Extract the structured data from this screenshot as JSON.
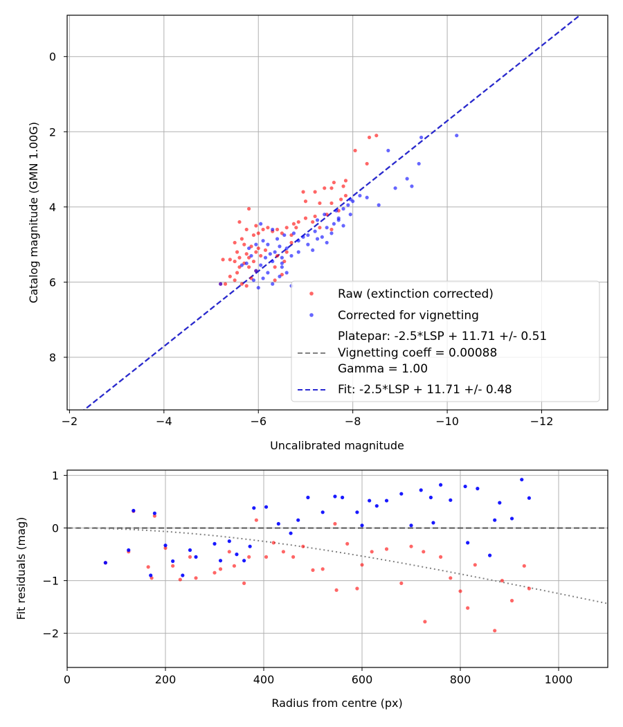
{
  "chart_data": [
    {
      "type": "scatter",
      "xlabel": "Uncalibrated magnitude",
      "ylabel": "Catalog magnitude (GMN 1.00G)",
      "xlim": [
        -1.95,
        -13.4
      ],
      "ylim": [
        9.4,
        -1.1
      ],
      "x_ticks": [
        -2,
        -4,
        -6,
        -8,
        -10,
        -12
      ],
      "x_tick_labels": [
        "−2",
        "−4",
        "−6",
        "−8",
        "−10",
        "−12"
      ],
      "y_ticks": [
        0,
        2,
        4,
        6,
        8
      ],
      "y_tick_labels": [
        "0",
        "2",
        "4",
        "6",
        "8"
      ],
      "grid": true,
      "legend_position": "lower-right",
      "legend": {
        "raw": "Raw (extinction corrected)",
        "corrected": "Corrected for vignetting",
        "platepar_line1": "Platepar: -2.5*LSP + 11.71 +/- 0.51",
        "platepar_line2": "Vignetting coeff = 0.00088",
        "platepar_line3": "Gamma = 1.00",
        "fit": "Fit: -2.5*LSP + 11.71 +/- 0.48"
      },
      "colors": {
        "raw": "#ff0000",
        "corrected": "#0000ff",
        "platepar_line": "#808080",
        "fit_line": "#2828d2"
      },
      "lines": [
        {
          "name": "Platepar: -2.5*LSP + 11.71 +/- 0.51",
          "slope": -2.5,
          "intercept": 11.71,
          "style": "dashed",
          "color": "#808080"
        },
        {
          "name": "Fit: -2.5*LSP + 11.71 +/- 0.48",
          "slope": -2.5,
          "intercept": 11.71,
          "style": "dashed",
          "color": "#2828d2"
        }
      ],
      "series": [
        {
          "name": "Raw (extinction corrected)",
          "points": [
            [
              -8.5,
              2.1
            ],
            [
              -8.35,
              2.15
            ],
            [
              -8.05,
              2.5
            ],
            [
              -8.3,
              2.85
            ],
            [
              -7.85,
              3.3
            ],
            [
              -7.8,
              3.45
            ],
            [
              -7.6,
              3.35
            ],
            [
              -7.55,
              3.5
            ],
            [
              -7.4,
              3.5
            ],
            [
              -7.2,
              3.6
            ],
            [
              -6.95,
              3.6
            ],
            [
              -7.0,
              3.85
            ],
            [
              -7.3,
              3.9
            ],
            [
              -7.55,
              3.9
            ],
            [
              -7.75,
              3.8
            ],
            [
              -7.85,
              3.7
            ],
            [
              -7.7,
              4.1
            ],
            [
              -7.45,
              4.2
            ],
            [
              -7.2,
              4.25
            ],
            [
              -7.0,
              4.3
            ],
            [
              -7.15,
              4.4
            ],
            [
              -7.3,
              4.55
            ],
            [
              -7.55,
              4.6
            ],
            [
              -6.85,
              4.4
            ],
            [
              -6.75,
              4.45
            ],
            [
              -6.6,
              4.55
            ],
            [
              -6.4,
              4.6
            ],
            [
              -6.3,
              4.65
            ],
            [
              -6.5,
              4.7
            ],
            [
              -6.7,
              4.75
            ],
            [
              -6.2,
              4.55
            ],
            [
              -6.1,
              4.6
            ],
            [
              -6.0,
              4.7
            ],
            [
              -5.95,
              4.5
            ],
            [
              -5.8,
              4.05
            ],
            [
              -5.6,
              4.4
            ],
            [
              -5.75,
              4.6
            ],
            [
              -5.9,
              4.75
            ],
            [
              -5.65,
              4.85
            ],
            [
              -5.5,
              4.95
            ],
            [
              -5.7,
              5.0
            ],
            [
              -5.85,
              5.05
            ],
            [
              -6.0,
              5.1
            ],
            [
              -6.15,
              5.15
            ],
            [
              -5.95,
              5.2
            ],
            [
              -5.75,
              5.25
            ],
            [
              -5.55,
              5.2
            ],
            [
              -5.6,
              5.35
            ],
            [
              -5.8,
              5.35
            ],
            [
              -6.05,
              5.3
            ],
            [
              -5.9,
              5.45
            ],
            [
              -5.7,
              5.5
            ],
            [
              -5.5,
              5.45
            ],
            [
              -5.4,
              5.4
            ],
            [
              -5.6,
              5.6
            ],
            [
              -5.8,
              5.6
            ],
            [
              -5.95,
              5.7
            ],
            [
              -5.55,
              5.75
            ],
            [
              -5.4,
              5.85
            ],
            [
              -5.5,
              5.95
            ],
            [
              -5.65,
              6.05
            ],
            [
              -5.75,
              6.1
            ],
            [
              -5.85,
              5.9
            ],
            [
              -6.4,
              5.3
            ],
            [
              -6.55,
              5.45
            ],
            [
              -6.35,
              5.6
            ],
            [
              -6.5,
              5.8
            ],
            [
              -6.35,
              5.95
            ],
            [
              -6.6,
              5.2
            ],
            [
              -6.7,
              4.95
            ],
            [
              -6.8,
              4.55
            ],
            [
              -5.25,
              5.4
            ],
            [
              -5.3,
              6.05
            ],
            [
              -5.2,
              6.05
            ]
          ]
        },
        {
          "name": "Corrected for vignetting",
          "points": [
            [
              -10.2,
              2.1
            ],
            [
              -9.45,
              2.15
            ],
            [
              -8.75,
              2.5
            ],
            [
              -9.4,
              2.85
            ],
            [
              -9.15,
              3.25
            ],
            [
              -8.9,
              3.5
            ],
            [
              -9.25,
              3.45
            ],
            [
              -8.55,
              3.95
            ],
            [
              -8.3,
              3.75
            ],
            [
              -8.15,
              3.7
            ],
            [
              -8.0,
              3.85
            ],
            [
              -7.9,
              3.95
            ],
            [
              -7.8,
              4.05
            ],
            [
              -7.95,
              4.2
            ],
            [
              -7.7,
              4.3
            ],
            [
              -7.6,
              4.45
            ],
            [
              -7.8,
              4.5
            ],
            [
              -7.45,
              4.55
            ],
            [
              -7.55,
              4.7
            ],
            [
              -7.35,
              4.8
            ],
            [
              -7.25,
              4.85
            ],
            [
              -7.2,
              4.65
            ],
            [
              -7.05,
              4.75
            ],
            [
              -6.95,
              4.8
            ],
            [
              -6.85,
              4.9
            ],
            [
              -7.05,
              5.0
            ],
            [
              -7.15,
              5.15
            ],
            [
              -6.85,
              5.2
            ],
            [
              -6.7,
              5.3
            ],
            [
              -6.5,
              5.35
            ],
            [
              -6.6,
              5.1
            ],
            [
              -6.45,
              5.05
            ],
            [
              -6.35,
              5.2
            ],
            [
              -6.25,
              5.25
            ],
            [
              -6.15,
              5.35
            ],
            [
              -6.3,
              5.45
            ],
            [
              -6.5,
              5.6
            ],
            [
              -6.6,
              5.75
            ],
            [
              -6.45,
              5.85
            ],
            [
              -6.2,
              5.75
            ],
            [
              -6.05,
              5.55
            ],
            [
              -5.95,
              5.7
            ],
            [
              -6.1,
              5.9
            ],
            [
              -6.3,
              6.05
            ],
            [
              -6.0,
              6.15
            ],
            [
              -6.4,
              4.85
            ],
            [
              -6.55,
              4.75
            ],
            [
              -6.75,
              4.7
            ],
            [
              -6.3,
              4.6
            ],
            [
              -6.1,
              4.9
            ],
            [
              -6.2,
              5.0
            ],
            [
              -5.95,
              5.0
            ],
            [
              -5.8,
              5.1
            ],
            [
              -5.85,
              5.3
            ],
            [
              -5.75,
              5.5
            ],
            [
              -5.65,
              5.55
            ],
            [
              -5.9,
              5.95
            ],
            [
              -6.7,
              6.1
            ],
            [
              -6.5,
              5.5
            ],
            [
              -7.25,
              4.35
            ],
            [
              -7.4,
              4.2
            ],
            [
              -7.65,
              4.1
            ],
            [
              -7.95,
              3.8
            ],
            [
              -7.7,
              4.35
            ],
            [
              -7.45,
              4.95
            ],
            [
              -6.05,
              4.45
            ],
            [
              -5.2,
              6.05
            ]
          ]
        }
      ]
    },
    {
      "type": "scatter",
      "xlabel": "Radius from centre (px)",
      "ylabel": "Fit residuals (mag)",
      "xlim": [
        0,
        1100
      ],
      "ylim": [
        -2.65,
        1.1
      ],
      "x_ticks": [
        0,
        200,
        400,
        600,
        800,
        1000
      ],
      "x_tick_labels": [
        "0",
        "200",
        "400",
        "600",
        "800",
        "1000"
      ],
      "y_ticks": [
        1,
        0,
        -1,
        -2
      ],
      "y_tick_labels": [
        "1",
        "0",
        "−1",
        "−2"
      ],
      "grid": true,
      "lines": [
        {
          "name": "zero",
          "y": 0,
          "style": "dashed",
          "color": "#555555"
        },
        {
          "name": "vignetting curve",
          "k": 0.00088,
          "style": "dotted",
          "color": "#808080"
        }
      ],
      "series": [
        {
          "name": "Raw",
          "color": "#ff0000",
          "points": [
            [
              78,
              -0.66
            ],
            [
              125,
              -0.45
            ],
            [
              135,
              0.32
            ],
            [
              165,
              -0.74
            ],
            [
              172,
              -0.95
            ],
            [
              178,
              0.23
            ],
            [
              200,
              -0.38
            ],
            [
              215,
              -0.72
            ],
            [
              230,
              -0.98
            ],
            [
              250,
              -0.55
            ],
            [
              262,
              -0.95
            ],
            [
              300,
              -0.85
            ],
            [
              312,
              -0.78
            ],
            [
              330,
              -0.45
            ],
            [
              340,
              -0.72
            ],
            [
              360,
              -1.05
            ],
            [
              370,
              -0.55
            ],
            [
              385,
              0.15
            ],
            [
              405,
              -0.55
            ],
            [
              420,
              -0.28
            ],
            [
              440,
              -0.45
            ],
            [
              460,
              -0.55
            ],
            [
              480,
              -0.35
            ],
            [
              500,
              -0.8
            ],
            [
              520,
              -0.78
            ],
            [
              545,
              0.08
            ],
            [
              548,
              -1.18
            ],
            [
              570,
              -0.3
            ],
            [
              590,
              -1.15
            ],
            [
              600,
              -0.7
            ],
            [
              620,
              -0.45
            ],
            [
              650,
              -0.4
            ],
            [
              680,
              -1.05
            ],
            [
              700,
              -0.35
            ],
            [
              725,
              -0.45
            ],
            [
              728,
              -1.78
            ],
            [
              760,
              -0.55
            ],
            [
              780,
              -0.95
            ],
            [
              800,
              -1.2
            ],
            [
              815,
              -1.52
            ],
            [
              830,
              -0.7
            ],
            [
              870,
              -1.95
            ],
            [
              885,
              -1.0
            ],
            [
              905,
              -1.38
            ],
            [
              930,
              -0.72
            ],
            [
              940,
              -1.15
            ]
          ]
        },
        {
          "name": "Corrected",
          "color": "#0000ff",
          "points": [
            [
              78,
              -0.66
            ],
            [
              125,
              -0.42
            ],
            [
              135,
              0.33
            ],
            [
              170,
              -0.9
            ],
            [
              178,
              0.28
            ],
            [
              200,
              -0.33
            ],
            [
              215,
              -0.63
            ],
            [
              235,
              -0.9
            ],
            [
              250,
              -0.42
            ],
            [
              262,
              -0.55
            ],
            [
              300,
              -0.3
            ],
            [
              312,
              -0.62
            ],
            [
              330,
              -0.25
            ],
            [
              345,
              -0.5
            ],
            [
              360,
              -0.62
            ],
            [
              372,
              -0.35
            ],
            [
              380,
              0.38
            ],
            [
              405,
              0.4
            ],
            [
              430,
              0.08
            ],
            [
              455,
              -0.1
            ],
            [
              470,
              0.15
            ],
            [
              490,
              0.58
            ],
            [
              520,
              0.3
            ],
            [
              545,
              0.6
            ],
            [
              560,
              0.58
            ],
            [
              590,
              0.3
            ],
            [
              600,
              0.05
            ],
            [
              615,
              0.52
            ],
            [
              630,
              0.42
            ],
            [
              650,
              0.52
            ],
            [
              680,
              0.65
            ],
            [
              700,
              0.05
            ],
            [
              720,
              0.72
            ],
            [
              740,
              0.58
            ],
            [
              760,
              0.82
            ],
            [
              780,
              0.53
            ],
            [
              810,
              0.79
            ],
            [
              835,
              0.75
            ],
            [
              870,
              0.15
            ],
            [
              880,
              0.48
            ],
            [
              905,
              0.18
            ],
            [
              925,
              0.92
            ],
            [
              940,
              0.57
            ],
            [
              860,
              -0.52
            ],
            [
              815,
              -0.28
            ],
            [
              745,
              0.1
            ]
          ]
        }
      ]
    }
  ]
}
